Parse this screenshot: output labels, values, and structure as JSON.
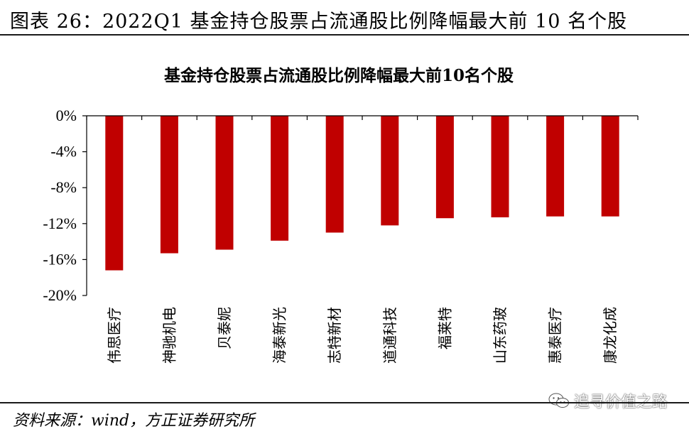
{
  "figure": {
    "label": "图表 26：2022Q1 基金持仓股票占流通股比例降幅最大前 10 名个股",
    "source": "资料来源：wind，方正证券研究所",
    "watermark": "追寻价值之路",
    "watermark_icon": "wechat-icon"
  },
  "chart_data": {
    "type": "bar",
    "title": "基金持仓股票占流通股比例降幅最大前10名个股",
    "categories": [
      "伟思医疗",
      "神驰机电",
      "贝泰妮",
      "海泰新光",
      "志特新材",
      "道通科技",
      "福莱特",
      "山东药玻",
      "惠泰医疗",
      "康龙化成"
    ],
    "values": [
      -17.2,
      -15.3,
      -14.9,
      -13.9,
      -13.0,
      -12.2,
      -11.4,
      -11.3,
      -11.2,
      -11.2
    ],
    "ylim": [
      -20,
      0
    ],
    "yticks": [
      0,
      -4,
      -8,
      -12,
      -16,
      -20
    ],
    "ytick_labels": [
      "0%",
      "-4%",
      "-8%",
      "-12%",
      "-16%",
      "-20%"
    ],
    "unit": "%",
    "bar_color": "#C00000",
    "grid": false,
    "legend": "none"
  }
}
